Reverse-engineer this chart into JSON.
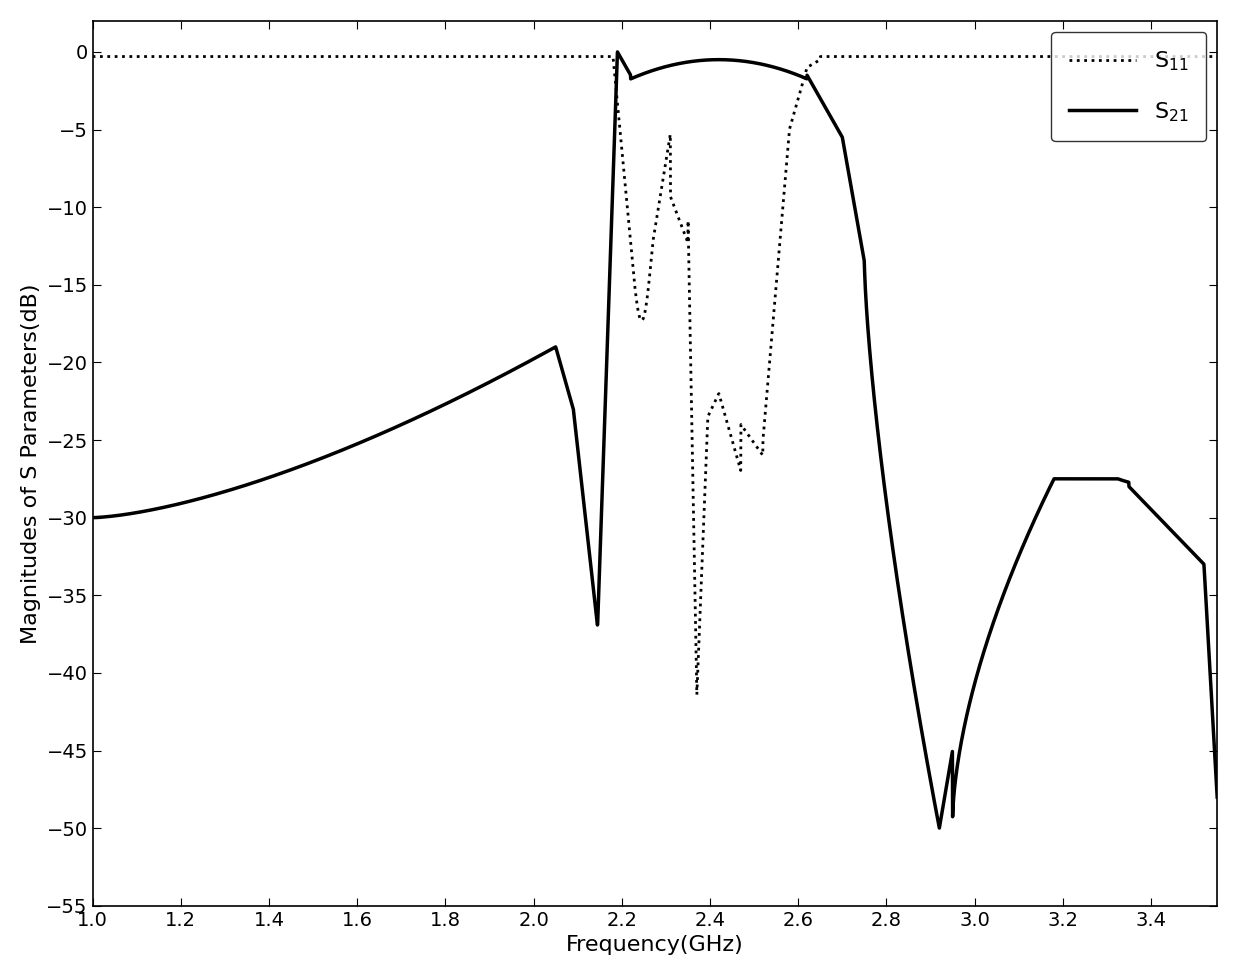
{
  "title": "",
  "xlabel": "Frequency(GHz)",
  "ylabel": "Magnitudes of S Parameters(dB)",
  "xlim": [
    1.0,
    3.55
  ],
  "ylim": [
    -55,
    2
  ],
  "xticks": [
    1.0,
    1.2,
    1.4,
    1.6,
    1.8,
    2.0,
    2.2,
    2.4,
    2.6,
    2.8,
    3.0,
    3.2,
    3.4
  ],
  "yticks": [
    0,
    -5,
    -10,
    -15,
    -20,
    -25,
    -30,
    -35,
    -40,
    -45,
    -50,
    -55
  ],
  "line_color": "#000000",
  "background_color": "#ffffff",
  "legend_S11": "S$_{11}$",
  "legend_S21": "S$_{21}$",
  "xlabel_fontsize": 16,
  "ylabel_fontsize": 16,
  "tick_fontsize": 14,
  "legend_fontsize": 16,
  "linewidth_solid": 2.5,
  "linewidth_dotted": 2.0
}
